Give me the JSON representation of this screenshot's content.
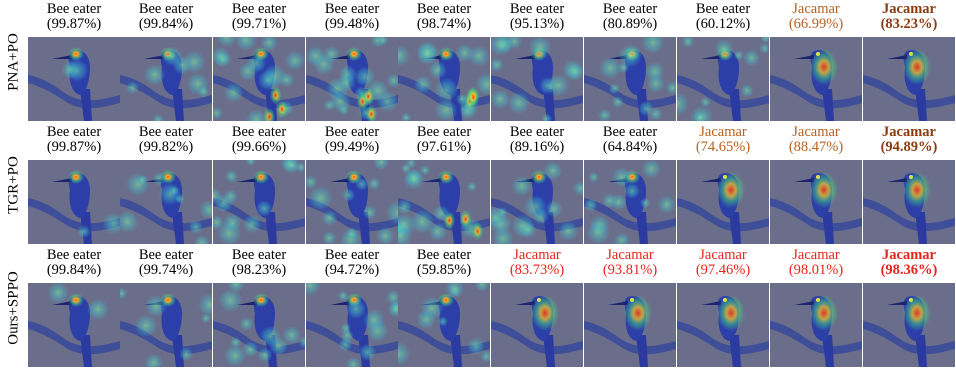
{
  "figure": {
    "rows": [
      {
        "label": "PNA+PO",
        "cells": [
          {
            "class": "Bee eater",
            "conf": "(99.87%)",
            "style": "normal",
            "heat": 0.1
          },
          {
            "class": "Bee eater",
            "conf": "(99.84%)",
            "style": "normal",
            "heat": 0.35
          },
          {
            "class": "Bee eater",
            "conf": "(99.71%)",
            "style": "normal",
            "heat": 0.7
          },
          {
            "class": "Bee eater",
            "conf": "(99.48%)",
            "style": "normal",
            "heat": 0.8
          },
          {
            "class": "Bee eater",
            "conf": "(98.74%)",
            "style": "normal",
            "heat": 0.65
          },
          {
            "class": "Bee eater",
            "conf": "(95.13%)",
            "style": "normal",
            "heat": 0.55
          },
          {
            "class": "Bee eater",
            "conf": "(80.89%)",
            "style": "normal",
            "heat": 0.55
          },
          {
            "class": "Bee eater",
            "conf": "(60.12%)",
            "style": "normal",
            "heat": 0.5
          },
          {
            "class": "Jacamar",
            "conf": "(66.99%)",
            "style": "brown",
            "heat": 0.0
          },
          {
            "class": "Jacamar",
            "conf": "(83.23%)",
            "style": "dbrown",
            "heat": 0.0
          }
        ]
      },
      {
        "label": "TGR+PO",
        "cells": [
          {
            "class": "Bee eater",
            "conf": "(99.87%)",
            "style": "normal",
            "heat": 0.1
          },
          {
            "class": "Bee eater",
            "conf": "(99.82%)",
            "style": "normal",
            "heat": 0.45
          },
          {
            "class": "Bee eater",
            "conf": "(99.66%)",
            "style": "normal",
            "heat": 0.6
          },
          {
            "class": "Bee eater",
            "conf": "(99.49%)",
            "style": "normal",
            "heat": 0.6
          },
          {
            "class": "Bee eater",
            "conf": "(97.61%)",
            "style": "normal",
            "heat": 0.65
          },
          {
            "class": "Bee eater",
            "conf": "(89.16%)",
            "style": "normal",
            "heat": 0.6
          },
          {
            "class": "Bee eater",
            "conf": "(64.84%)",
            "style": "normal",
            "heat": 0.55
          },
          {
            "class": "Jacamar",
            "conf": "(74.65%)",
            "style": "brown",
            "heat": 0.0
          },
          {
            "class": "Jacamar",
            "conf": "(88.47%)",
            "style": "brown",
            "heat": 0.0
          },
          {
            "class": "Jacamar",
            "conf": "(94.89%)",
            "style": "dbrown",
            "heat": 0.0
          }
        ]
      },
      {
        "label": "Ours+SPPO",
        "cells": [
          {
            "class": "Bee eater",
            "conf": "(99.84%)",
            "style": "normal",
            "heat": 0.1
          },
          {
            "class": "Bee eater",
            "conf": "(99.74%)",
            "style": "normal",
            "heat": 0.3
          },
          {
            "class": "Bee eater",
            "conf": "(98.23%)",
            "style": "normal",
            "heat": 0.5
          },
          {
            "class": "Bee eater",
            "conf": "(94.72%)",
            "style": "normal",
            "heat": 0.6
          },
          {
            "class": "Bee eater",
            "conf": "(59.85%)",
            "style": "normal",
            "heat": 0.4
          },
          {
            "class": "Jacamar",
            "conf": "(83.73%)",
            "style": "red",
            "heat": 0.0
          },
          {
            "class": "Jacamar",
            "conf": "(93.81%)",
            "style": "red",
            "heat": 0.0
          },
          {
            "class": "Jacamar",
            "conf": "(97.46%)",
            "style": "red",
            "heat": 0.0
          },
          {
            "class": "Jacamar",
            "conf": "(98.01%)",
            "style": "red",
            "heat": 0.0
          },
          {
            "class": "Jacamar",
            "conf": "(98.36%)",
            "style": "dred",
            "heat": 0.0
          }
        ]
      }
    ],
    "colors": {
      "normal": "#000000",
      "brown": "#b8601e",
      "dbrown": "#8a3c10",
      "red": "#e8241c",
      "background": "#6b6e8a",
      "bird": "#2c3fa8"
    }
  }
}
